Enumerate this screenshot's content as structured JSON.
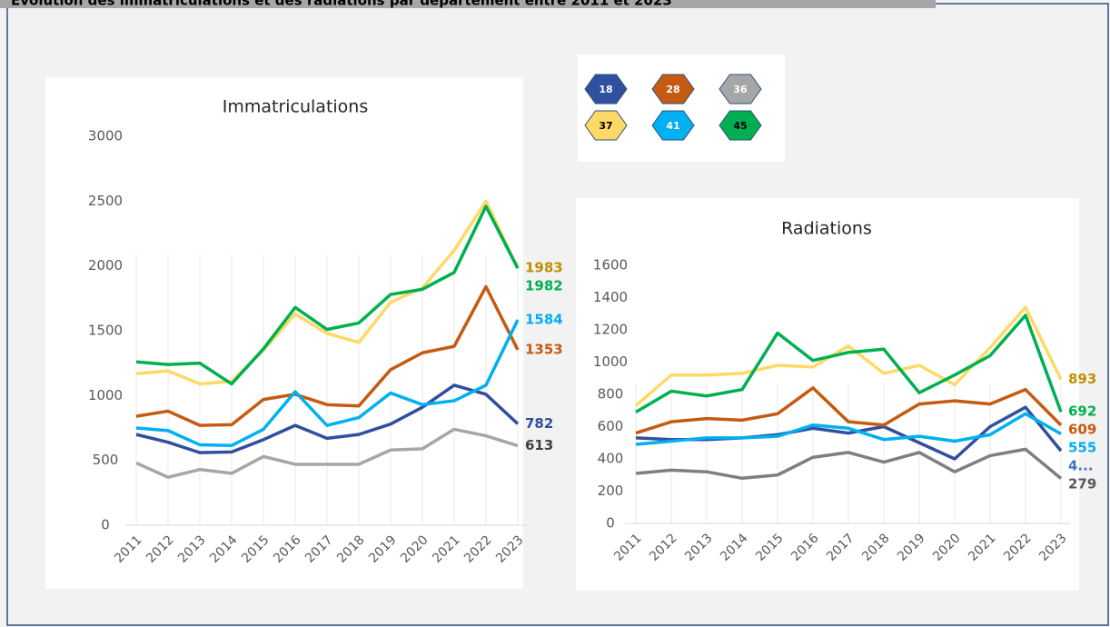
{
  "header": {
    "title": "Évolution des immatriculations et des radiations par département entre 2011 et 2023"
  },
  "chart_data": [
    {
      "type": "line",
      "title": "Immatriculations",
      "x": [
        "2011",
        "2012",
        "2013",
        "2014",
        "2015",
        "2016",
        "2017",
        "2018",
        "2019",
        "2020",
        "2021",
        "2022",
        "2023"
      ],
      "ylim": [
        0,
        3000
      ],
      "yticks": [
        0,
        500,
        1000,
        1500,
        2000,
        2500,
        3000
      ],
      "grid": false,
      "series": [
        {
          "name": "18",
          "color": "#2f4f9f",
          "label_color": "#2f4f9f",
          "values": [
            700,
            640,
            560,
            565,
            660,
            770,
            670,
            700,
            780,
            910,
            1080,
            1010,
            782
          ]
        },
        {
          "name": "28",
          "color": "#c55a11",
          "label_color": "#c55a11",
          "values": [
            840,
            880,
            770,
            775,
            970,
            1010,
            930,
            920,
            1200,
            1330,
            1380,
            1840,
            1353
          ]
        },
        {
          "name": "36",
          "color": "#a6a6a6",
          "label_color": "#404040",
          "values": [
            480,
            370,
            430,
            400,
            530,
            470,
            470,
            470,
            580,
            590,
            740,
            690,
            613
          ]
        },
        {
          "name": "37",
          "color": "#ffd966",
          "label_color": "#bf9000",
          "values": [
            1170,
            1190,
            1090,
            1110,
            1350,
            1630,
            1480,
            1410,
            1720,
            1830,
            2120,
            2500,
            1983
          ]
        },
        {
          "name": "41",
          "color": "#00b0f0",
          "label_color": "#00b0f0",
          "values": [
            750,
            730,
            620,
            615,
            740,
            1030,
            770,
            830,
            1020,
            930,
            960,
            1080,
            1584
          ]
        },
        {
          "name": "45",
          "color": "#00b050",
          "label_color": "#00b050",
          "values": [
            1260,
            1240,
            1250,
            1090,
            1360,
            1680,
            1510,
            1560,
            1780,
            1820,
            1950,
            2460,
            1982
          ]
        }
      ]
    },
    {
      "type": "line",
      "title": "Radiations",
      "x": [
        "2011",
        "2012",
        "2013",
        "2014",
        "2015",
        "2016",
        "2017",
        "2018",
        "2019",
        "2020",
        "2021",
        "2022",
        "2023"
      ],
      "ylim": [
        0,
        1600
      ],
      "yticks": [
        0,
        200,
        400,
        600,
        800,
        1000,
        1200,
        1400,
        1600
      ],
      "grid": false,
      "series": [
        {
          "color": "#2f4f9f",
          "label_color": "#4472c4",
          "values": [
            530,
            520,
            520,
            530,
            550,
            590,
            560,
            600,
            500,
            400,
            600,
            720,
            450
          ],
          "value_labels": [
            null,
            null,
            null,
            null,
            null,
            null,
            null,
            null,
            null,
            null,
            null,
            null,
            "4..."
          ]
        },
        {
          "color": "#c55a11",
          "label_color": "#c55a11",
          "values": [
            560,
            630,
            650,
            640,
            680,
            840,
            630,
            610,
            740,
            760,
            740,
            830,
            609
          ]
        },
        {
          "color": "#7f7f7f",
          "label_color": "#595959",
          "values": [
            310,
            330,
            320,
            280,
            300,
            410,
            440,
            380,
            440,
            320,
            420,
            460,
            279
          ]
        },
        {
          "color": "#ffd966",
          "label_color": "#bf9000",
          "values": [
            730,
            920,
            920,
            930,
            980,
            970,
            1100,
            930,
            980,
            860,
            1090,
            1340,
            893
          ]
        },
        {
          "color": "#00b0f0",
          "label_color": "#00b0f0",
          "values": [
            490,
            510,
            530,
            530,
            540,
            610,
            590,
            520,
            540,
            510,
            550,
            680,
            555
          ]
        },
        {
          "color": "#00b050",
          "label_color": "#00b050",
          "values": [
            690,
            820,
            790,
            830,
            1180,
            1010,
            1060,
            1080,
            810,
            920,
            1040,
            1290,
            692
          ]
        }
      ]
    }
  ]
}
